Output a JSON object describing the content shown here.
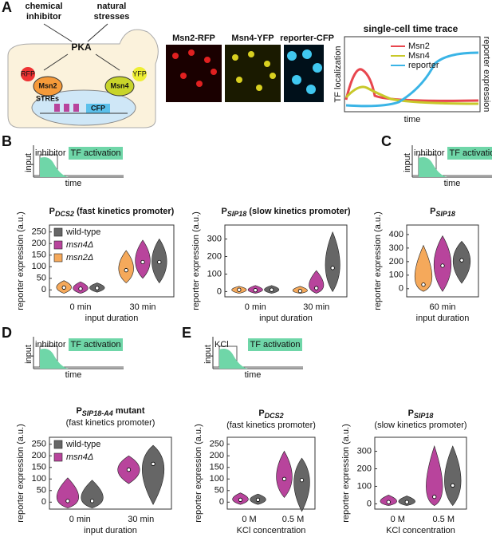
{
  "panels": [
    "A",
    "B",
    "C",
    "D",
    "E"
  ],
  "schematic": {
    "inhibitor": [
      "chemical",
      "inhibitor"
    ],
    "stresses": [
      "natural",
      "stresses"
    ],
    "pka": "PKA",
    "rfp": "RFP",
    "yfp": "YFP",
    "msn2": "Msn2",
    "msn4": "Msn4",
    "stres": "STREs",
    "cfp": "CFP"
  },
  "images": [
    "Msn2-RFP",
    "Msn4-YFP",
    "reporter-CFP"
  ],
  "trace": {
    "title": "single-cell time trace",
    "legend": [
      "Msn2",
      "Msn4",
      "reporter"
    ],
    "ylabel": "TF localization",
    "y2label": "reporter expression",
    "xlabel": "time"
  },
  "insets": [
    {
      "label": "inhibitor",
      "activation": "TF activation",
      "ylabel": "input",
      "xlabel": "time"
    },
    {
      "label": "inhibitor",
      "activation": "TF activation",
      "ylabel": "input",
      "xlabel": "time"
    },
    {
      "label": "inhibitor",
      "activation": "TF activation",
      "ylabel": "input",
      "xlabel": "time"
    },
    {
      "label": "KCl",
      "activation": "TF activation",
      "ylabel": "input",
      "xlabel": "time"
    }
  ],
  "chart_data": [
    {
      "type": "violin",
      "title": "P",
      "title_sub": "DCS2",
      "title_rest": " (fast kinetics promoter)",
      "ylabel": "reporter expression (a.u.)",
      "xlabel": "input duration",
      "categories": [
        "0 min",
        "30 min"
      ],
      "legend": "upper left",
      "ylim": [
        -30,
        280
      ],
      "yticks": [
        0,
        50,
        100,
        150,
        200,
        250
      ],
      "series": [
        {
          "name": "wild-type",
          "color": "#666666",
          "values": [
            8,
            120
          ],
          "min": [
            -10,
            30
          ],
          "max": [
            30,
            220
          ]
        },
        {
          "name": "msn4Δ",
          "color": "#b8449c",
          "values": [
            5,
            120
          ],
          "min": [
            -15,
            50
          ],
          "max": [
            35,
            215
          ]
        },
        {
          "name": "msn2Δ",
          "color": "#f5a95b",
          "values": [
            10,
            85
          ],
          "min": [
            -15,
            30
          ],
          "max": [
            40,
            170
          ]
        }
      ]
    },
    {
      "type": "violin",
      "title": "P",
      "title_sub": "SIP18",
      "title_rest": " (slow kinetics promoter)",
      "ylabel": "reporter expression (a.u.)",
      "xlabel": "input duration",
      "categories": [
        "0 min",
        "30 min"
      ],
      "ylim": [
        -30,
        380
      ],
      "yticks": [
        0,
        100,
        200,
        300
      ],
      "series": [
        {
          "color": "#666666",
          "values": [
            10,
            135
          ],
          "min": [
            -10,
            0
          ],
          "max": [
            35,
            340
          ]
        },
        {
          "color": "#b8449c",
          "values": [
            8,
            20
          ],
          "min": [
            -10,
            -10
          ],
          "max": [
            35,
            120
          ]
        },
        {
          "color": "#f5a95b",
          "values": [
            10,
            3
          ],
          "min": [
            -10,
            -10
          ],
          "max": [
            30,
            30
          ]
        }
      ]
    },
    {
      "type": "violin",
      "title": "P",
      "title_sub": "SIP18",
      "ylabel": "reporter expression (a.u.)",
      "xlabel": "input duration",
      "categories": [
        "60 min"
      ],
      "ylim": [
        -60,
        470
      ],
      "yticks": [
        0,
        100,
        200,
        300,
        400
      ],
      "series": [
        {
          "color": "#666666",
          "values": [
            210
          ],
          "min": [
            40
          ],
          "max": [
            350
          ]
        },
        {
          "color": "#b8449c",
          "values": [
            170
          ],
          "min": [
            -20
          ],
          "max": [
            390
          ]
        },
        {
          "color": "#f5a95b",
          "values": [
            30
          ],
          "min": [
            -20
          ],
          "max": [
            320
          ]
        }
      ]
    },
    {
      "type": "violin",
      "title": "P",
      "title_sub": "SIP18-A4",
      "title_rest": " mutant",
      "subtitle": "(fast kinetics promoter)",
      "ylabel": "reporter expression (a.u.)",
      "xlabel": "input duration",
      "categories": [
        "0 min",
        "30 min"
      ],
      "legend": "upper left",
      "ylim": [
        -30,
        280
      ],
      "yticks": [
        0,
        50,
        100,
        150,
        200,
        250
      ],
      "series": [
        {
          "name": "wild-type",
          "color": "#666666",
          "values": [
            5,
            165
          ],
          "min": [
            -25,
            -10
          ],
          "max": [
            95,
            245
          ]
        },
        {
          "name": "msn4Δ",
          "color": "#b8449c",
          "values": [
            5,
            140
          ],
          "min": [
            -25,
            80
          ],
          "max": [
            105,
            200
          ]
        }
      ]
    },
    {
      "type": "violin",
      "title": "P",
      "title_sub": "DCS2",
      "subtitle": "(fast kinetics promoter)",
      "ylabel": "reporter expression (a.u.)",
      "xlabel": "KCl concentration",
      "categories": [
        "0 M",
        "0.5 M"
      ],
      "ylim": [
        -30,
        280
      ],
      "yticks": [
        0,
        50,
        100,
        150,
        200,
        250
      ],
      "series": [
        {
          "color": "#666666",
          "values": [
            10,
            95
          ],
          "min": [
            -10,
            -40
          ],
          "max": [
            35,
            190
          ]
        },
        {
          "color": "#b8449c",
          "values": [
            10,
            100
          ],
          "min": [
            -10,
            20
          ],
          "max": [
            40,
            220
          ]
        }
      ]
    },
    {
      "type": "violin",
      "title": "P",
      "title_sub": "SIP18",
      "subtitle": "(slow kinetics promoter)",
      "ylabel": "reporter expression (a.u.)",
      "xlabel": "KCl concentration",
      "categories": [
        "0 M",
        "0.5 M"
      ],
      "ylim": [
        -30,
        380
      ],
      "yticks": [
        0,
        100,
        200,
        300
      ],
      "series": [
        {
          "color": "#666666",
          "values": [
            10,
            105
          ],
          "min": [
            -10,
            -10
          ],
          "max": [
            45,
            330
          ]
        },
        {
          "color": "#b8449c",
          "values": [
            10,
            40
          ],
          "min": [
            -10,
            -10
          ],
          "max": [
            50,
            330
          ]
        }
      ]
    }
  ]
}
